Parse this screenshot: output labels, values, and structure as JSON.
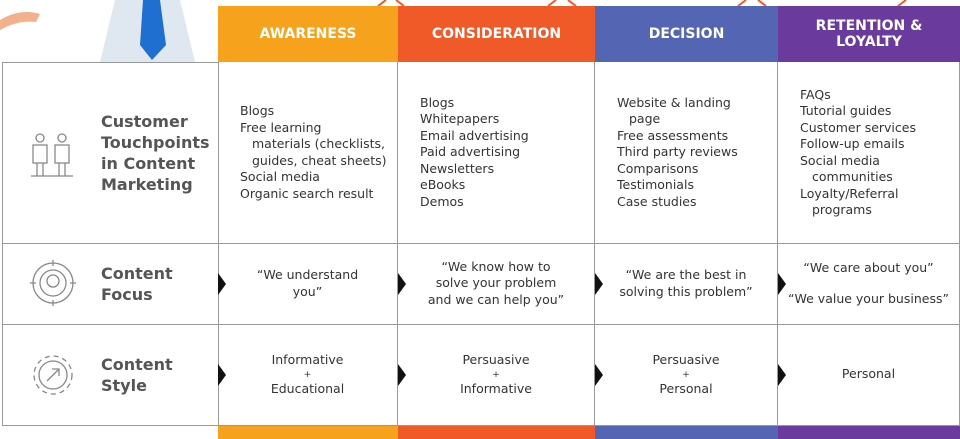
{
  "columns": [
    {
      "title": [
        "AWARENESS"
      ],
      "color": "#f7a21c"
    },
    {
      "title": [
        "CONSIDERATION"
      ],
      "color": "#f05a28"
    },
    {
      "title": [
        "DECISION"
      ],
      "color": "#5466b3"
    },
    {
      "title": [
        "RETENTION &",
        "LOYALTY"
      ],
      "color": "#6a3b9c"
    }
  ],
  "rows": [
    {
      "label": [
        "Customer",
        "Touchpoints",
        "in Content",
        "Marketing"
      ],
      "cells": [
        [
          [
            "Blogs"
          ],
          [
            "Free learning",
            "materials (checklists,",
            "guides, cheat sheets)"
          ],
          [
            "Social media"
          ],
          [
            "Organic search result"
          ]
        ],
        [
          [
            "Blogs"
          ],
          [
            "Whitepapers"
          ],
          [
            "Email advertising"
          ],
          [
            "Paid advertising"
          ],
          [
            "Newsletters"
          ],
          [
            "eBooks"
          ],
          [
            "Demos"
          ]
        ],
        [
          [
            "Website & landing",
            "page"
          ],
          [
            "Free assessments"
          ],
          [
            "Third party reviews"
          ],
          [
            "Comparisons"
          ],
          [
            "Testimonials"
          ],
          [
            "Case studies"
          ]
        ],
        [
          [
            "FAQs"
          ],
          [
            "Tutorial guides"
          ],
          [
            "Customer services"
          ],
          [
            "Follow-up emails"
          ],
          [
            "Social media",
            "communities"
          ],
          [
            "Loyalty/Referral",
            "programs"
          ]
        ]
      ]
    },
    {
      "label": [
        "Content",
        "Focus"
      ],
      "cells": [
        [
          [
            "“We understand",
            "you”"
          ]
        ],
        [
          [
            "“We know how to",
            "solve your problem",
            "and we can help you”"
          ]
        ],
        [
          [
            "“We are the best in",
            "solving this problem”"
          ]
        ],
        [
          [
            "“We care about you”"
          ],
          [
            "“We value your business”"
          ]
        ]
      ]
    },
    {
      "label": [
        "Content",
        "Style"
      ],
      "cells": [
        [
          [
            "Informative",
            "+",
            "Educational"
          ]
        ],
        [
          [
            "Persuasive",
            "+",
            "Informative"
          ]
        ],
        [
          [
            "Persuasive",
            "+",
            "Personal"
          ]
        ],
        [
          [
            "Personal"
          ]
        ]
      ]
    }
  ]
}
